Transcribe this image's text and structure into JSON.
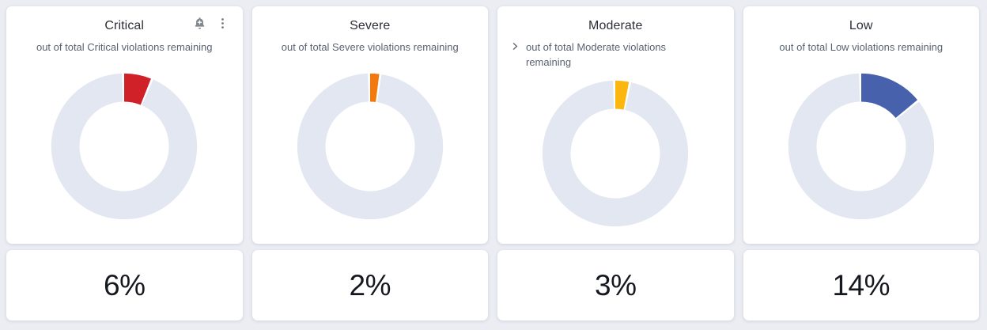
{
  "page": {
    "background_color": "#ebedf3",
    "card_background": "#ffffff",
    "track_color": "#e3e7f1"
  },
  "cards": [
    {
      "severity": "critical",
      "title": "Critical",
      "subtitle": "out of total Critical violations remaining",
      "percent": 6,
      "percent_label": "6%",
      "segment_color": "#d02028"
    },
    {
      "severity": "severe",
      "title": "Severe",
      "subtitle": "out of total Severe violations remaining",
      "percent": 2,
      "percent_label": "2%",
      "segment_color": "#f2790d"
    },
    {
      "severity": "moderate",
      "title": "Moderate",
      "subtitle": "out of total Moderate violations remaining",
      "percent": 3,
      "percent_label": "3%",
      "segment_color": "#fbb610"
    },
    {
      "severity": "low",
      "title": "Low",
      "subtitle": "out of total Low violations remaining",
      "percent": 14,
      "percent_label": "14%",
      "segment_color": "#4761ad"
    }
  ],
  "icons": {
    "bell_plus": "add-notification",
    "kebab_menu": "more-options",
    "chevron_right": "expand"
  },
  "icon_color": "#82868f",
  "chart_data": [
    {
      "type": "pie",
      "variant": "donut",
      "title": "Critical",
      "labels": [
        "Critical violations remaining",
        "remainder"
      ],
      "values": [
        6,
        94
      ],
      "colors": [
        "#d02028",
        "#e3e7f1"
      ],
      "start_angle": "12 o'clock",
      "direction": "clockwise",
      "value_label": "6%"
    },
    {
      "type": "pie",
      "variant": "donut",
      "title": "Severe",
      "labels": [
        "Severe violations remaining",
        "remainder"
      ],
      "values": [
        2,
        98
      ],
      "colors": [
        "#f2790d",
        "#e3e7f1"
      ],
      "start_angle": "12 o'clock",
      "direction": "clockwise",
      "value_label": "2%"
    },
    {
      "type": "pie",
      "variant": "donut",
      "title": "Moderate",
      "labels": [
        "Moderate violations remaining",
        "remainder"
      ],
      "values": [
        3,
        97
      ],
      "colors": [
        "#fbb610",
        "#e3e7f1"
      ],
      "start_angle": "12 o'clock",
      "direction": "clockwise",
      "value_label": "3%"
    },
    {
      "type": "pie",
      "variant": "donut",
      "title": "Low",
      "labels": [
        "Low violations remaining",
        "remainder"
      ],
      "values": [
        14,
        86
      ],
      "colors": [
        "#4761ad",
        "#e3e7f1"
      ],
      "start_angle": "12 o'clock",
      "direction": "clockwise",
      "value_label": "14%"
    }
  ]
}
